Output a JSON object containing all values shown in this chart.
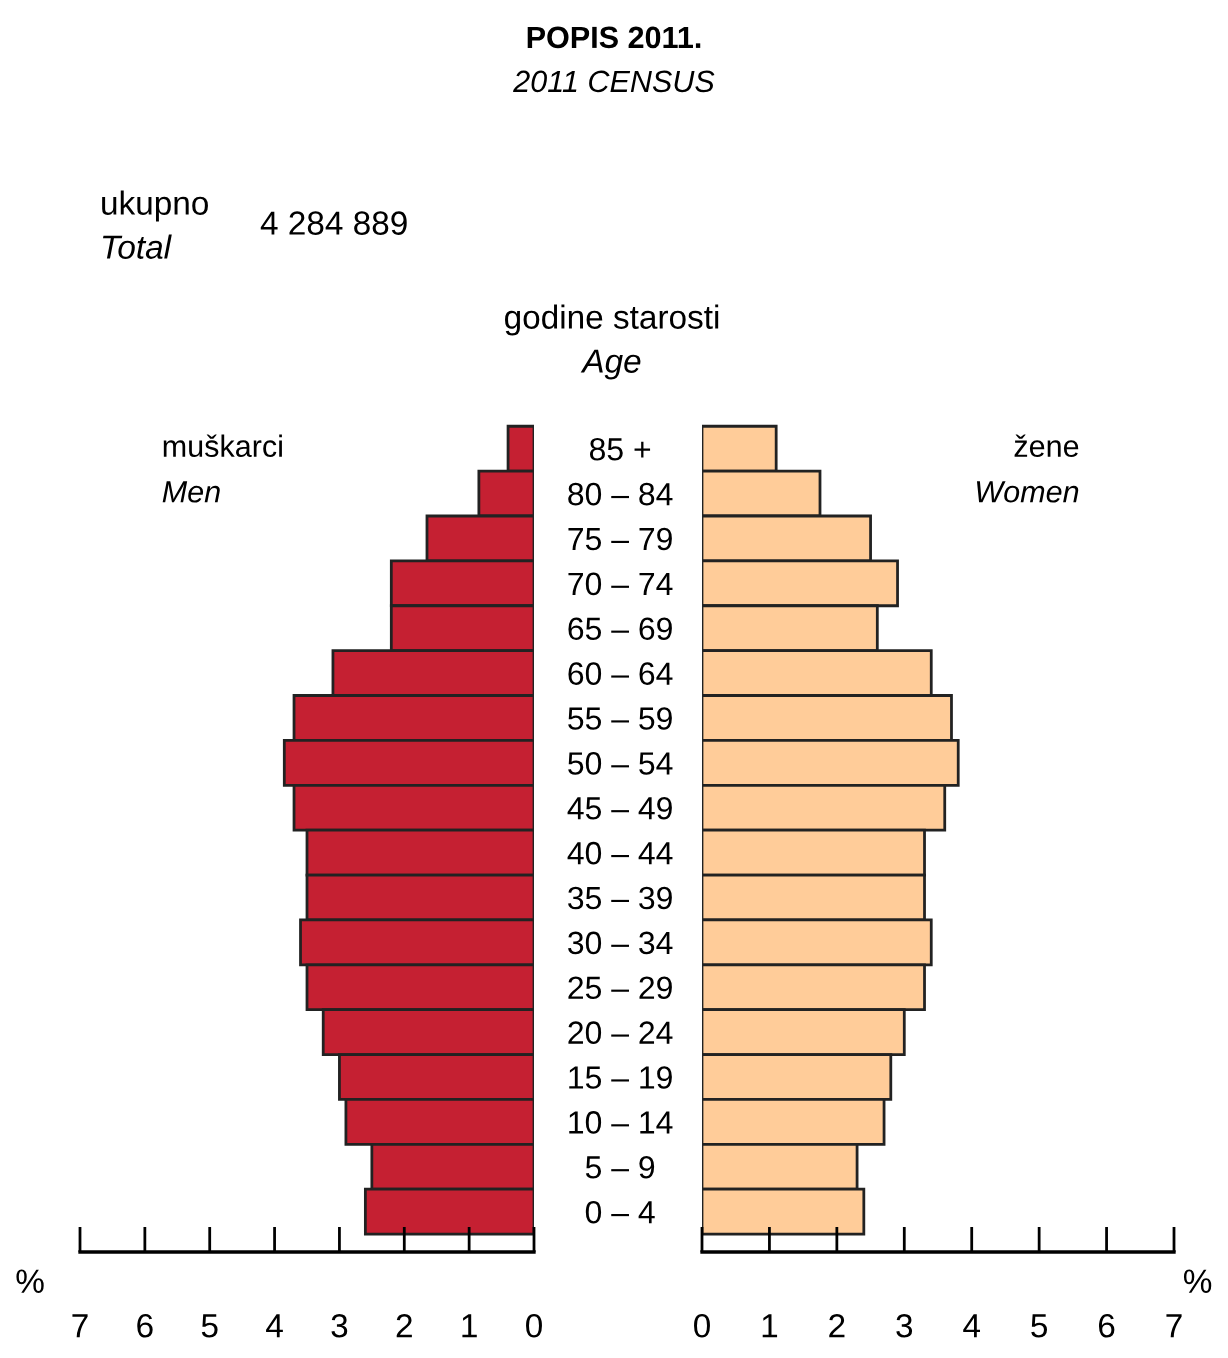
{
  "chart_data": [
    {
      "type": "bar",
      "orientation": "horizontal",
      "title": "POPIS 2011.",
      "subtitle": "2011 CENSUS",
      "ylabel": "godine starosti\nAge",
      "xlabel": "%",
      "annotations": [
        "ukupno\nTotal",
        "4 284 889"
      ],
      "categories": [
        "85 +",
        "80 – 84",
        "75 – 79",
        "70 – 74",
        "65 – 69",
        "60 – 64",
        "55 – 59",
        "50 – 54",
        "45 – 49",
        "40 – 44",
        "35 – 39",
        "30 – 34",
        "25 – 29",
        "20 – 24",
        "15 – 19",
        "10 – 14",
        "5 – 9",
        "0 – 4"
      ],
      "series": [
        {
          "name": "muškarci\nMen",
          "color": "#c52032",
          "values": [
            0.4,
            0.85,
            1.65,
            2.2,
            2.2,
            3.1,
            3.7,
            3.85,
            3.7,
            3.5,
            3.5,
            3.6,
            3.5,
            3.25,
            3.0,
            2.9,
            2.5,
            2.6
          ]
        }
      ],
      "xlim": [
        7,
        0
      ],
      "xticks": [
        7,
        6,
        5,
        4,
        3,
        2,
        1,
        0
      ]
    },
    {
      "type": "bar",
      "orientation": "horizontal",
      "xlabel": "%",
      "tick_labels": "x",
      "series": [
        {
          "name": "žene\nWomen",
          "color": "#ffcc99",
          "values": [
            1.1,
            1.75,
            2.5,
            2.9,
            2.6,
            3.4,
            3.7,
            3.8,
            3.6,
            3.3,
            3.3,
            3.4,
            3.3,
            3.0,
            2.8,
            2.7,
            2.3,
            2.4
          ]
        }
      ],
      "xlim": [
        0,
        7
      ],
      "xticks": [
        0,
        1,
        2,
        3,
        4,
        5,
        6,
        7
      ]
    }
  ]
}
